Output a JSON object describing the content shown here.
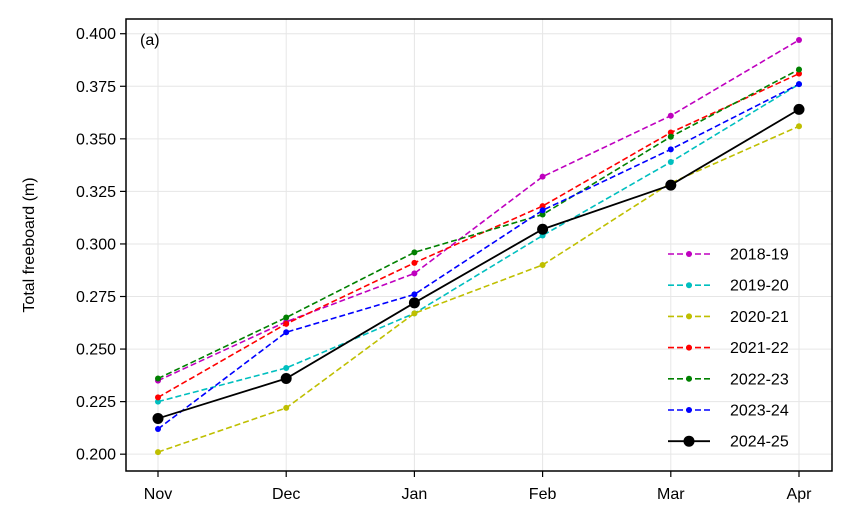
{
  "chart_data": {
    "type": "line",
    "panel_label": "(a)",
    "xlabel": "",
    "ylabel": "Total freeboard (m)",
    "categories": [
      "Nov",
      "Dec",
      "Jan",
      "Feb",
      "Mar",
      "Apr"
    ],
    "ylim": [
      0.192,
      0.407
    ],
    "yticks": [
      0.2,
      0.225,
      0.25,
      0.275,
      0.3,
      0.325,
      0.35,
      0.375,
      0.4
    ],
    "ytick_labels": [
      "0.200",
      "0.225",
      "0.250",
      "0.275",
      "0.300",
      "0.325",
      "0.350",
      "0.375",
      "0.400"
    ],
    "grid": true,
    "legend_position": "lower-right",
    "series": [
      {
        "name": "2018-19",
        "color": "#bf00bf",
        "style": "dashed",
        "marker": "small",
        "values": [
          0.235,
          0.263,
          0.286,
          0.332,
          0.361,
          0.397
        ]
      },
      {
        "name": "2019-20",
        "color": "#00bfbf",
        "style": "dashed",
        "marker": "small",
        "values": [
          0.225,
          0.241,
          0.267,
          0.304,
          0.339,
          0.376
        ]
      },
      {
        "name": "2020-21",
        "color": "#bfbf00",
        "style": "dashed",
        "marker": "small",
        "values": [
          0.201,
          0.222,
          0.267,
          0.29,
          0.329,
          0.356
        ]
      },
      {
        "name": "2021-22",
        "color": "#ff0000",
        "style": "dashed",
        "marker": "small",
        "values": [
          0.227,
          0.262,
          0.291,
          0.318,
          0.353,
          0.381
        ]
      },
      {
        "name": "2022-23",
        "color": "#008000",
        "style": "dashed",
        "marker": "small",
        "values": [
          0.236,
          0.265,
          0.296,
          0.314,
          0.351,
          0.383
        ]
      },
      {
        "name": "2023-24",
        "color": "#0000ff",
        "style": "dashed",
        "marker": "small",
        "values": [
          0.212,
          0.258,
          0.276,
          0.316,
          0.345,
          0.376
        ]
      },
      {
        "name": "2024-25",
        "color": "#000000",
        "style": "solid",
        "marker": "large",
        "values": [
          0.217,
          0.236,
          0.272,
          0.307,
          0.328,
          0.364
        ]
      }
    ]
  }
}
